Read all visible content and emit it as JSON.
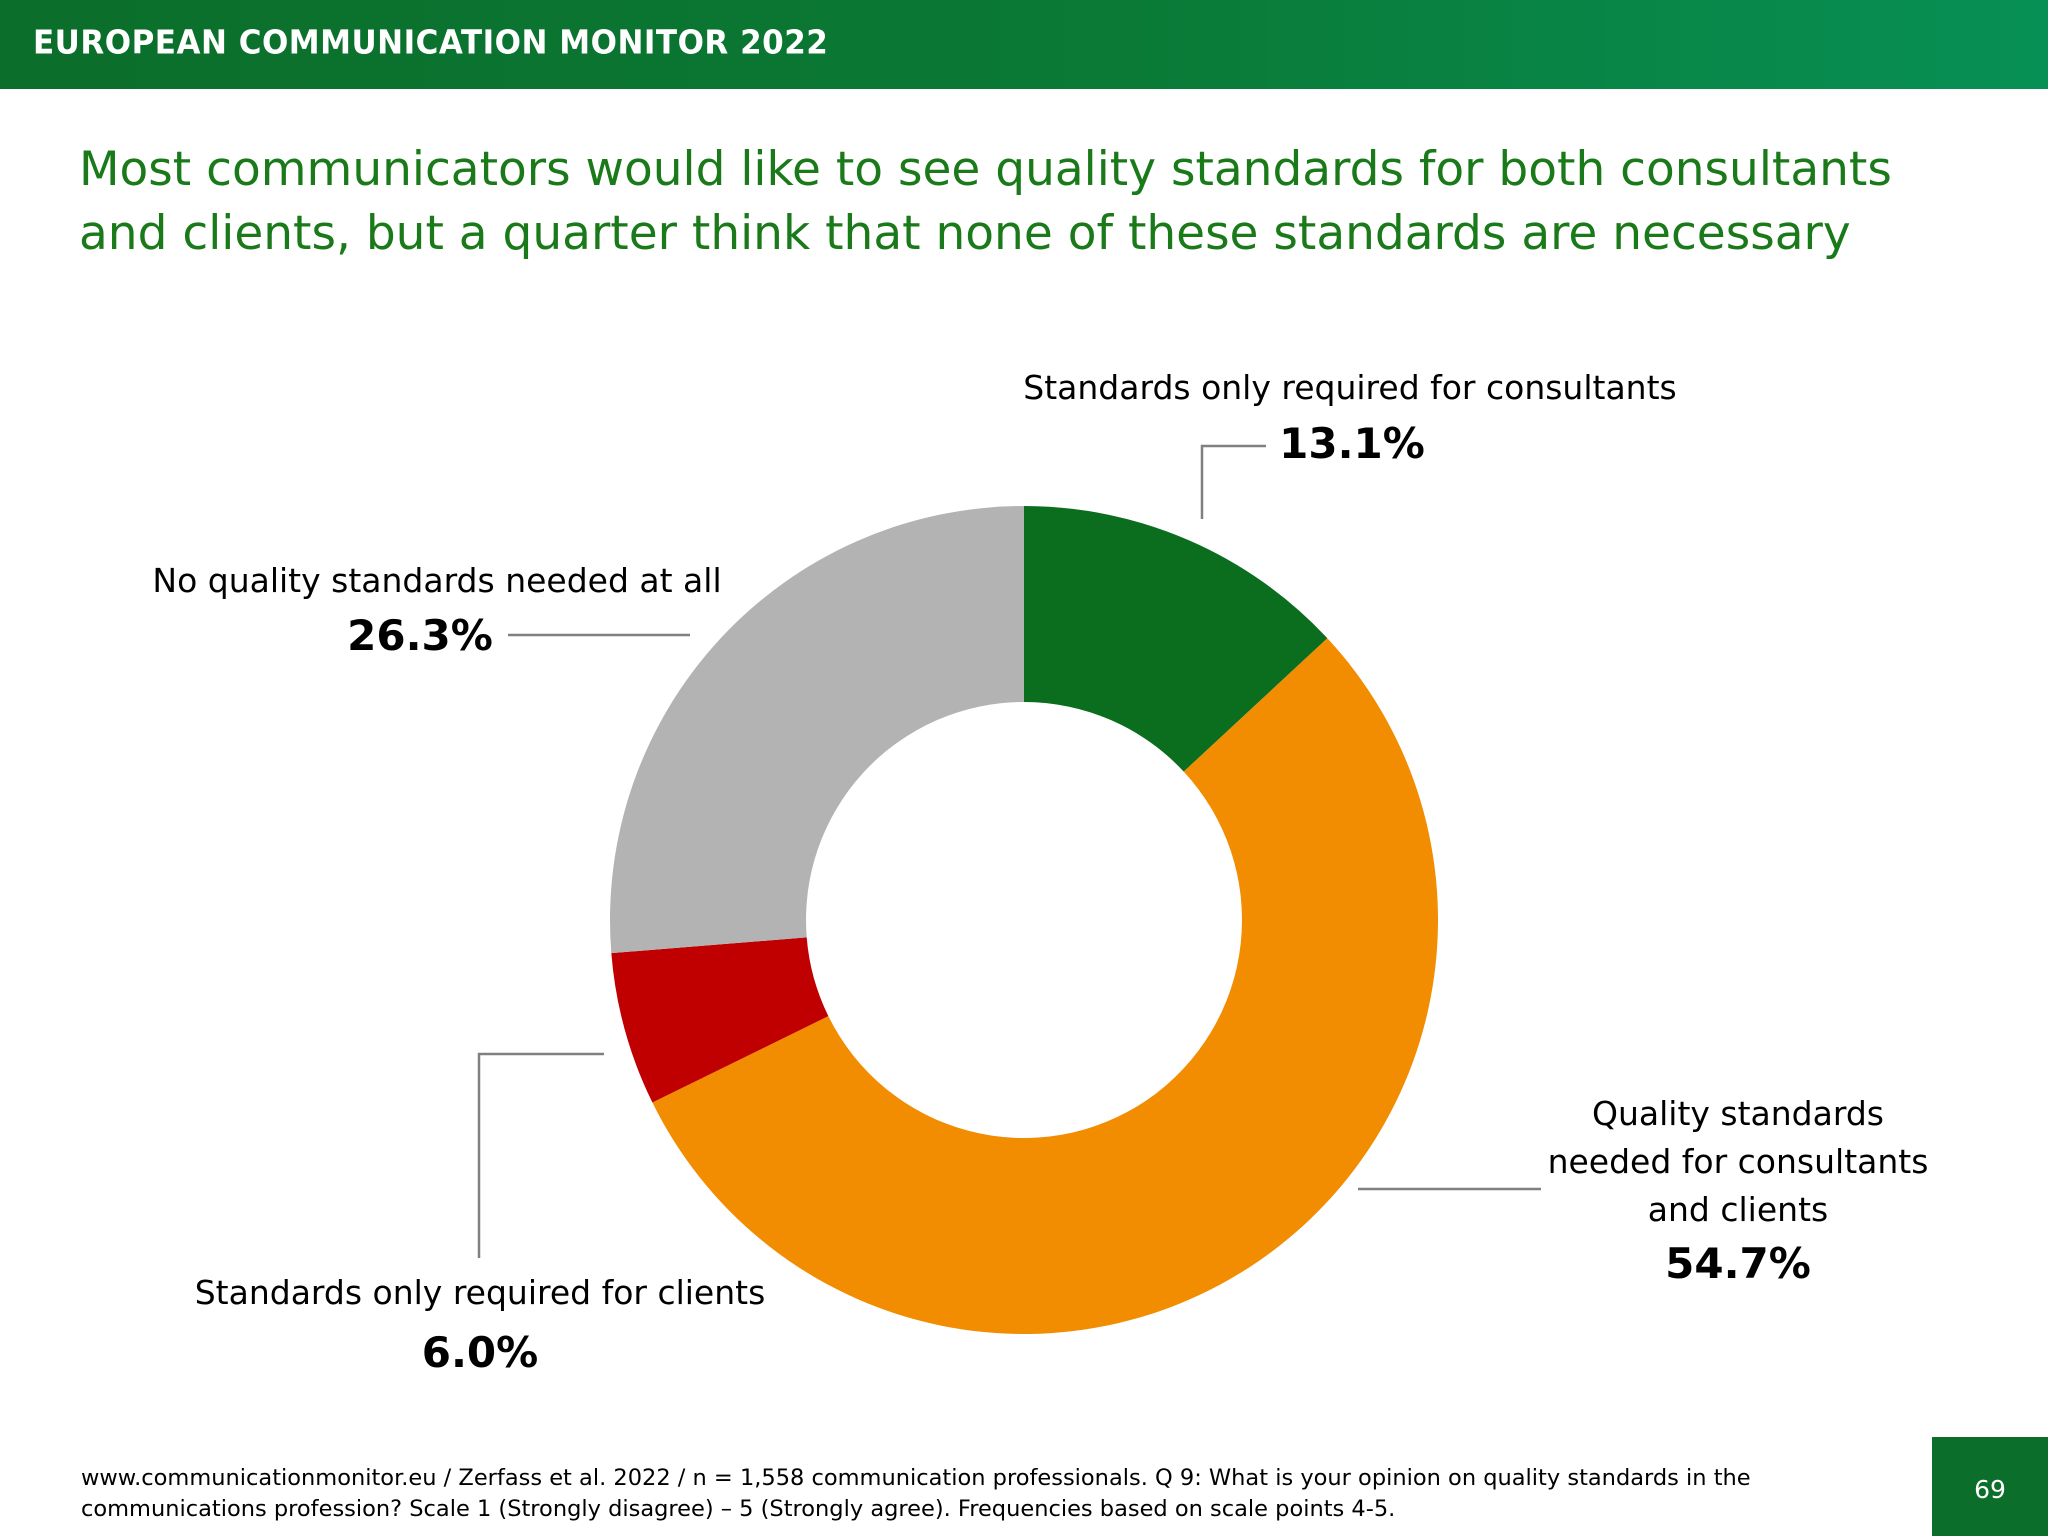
{
  "header": {
    "title": "EUROPEAN COMMUNICATION MONITOR 2022"
  },
  "slide": {
    "title_line1": "Most communicators would like to see quality standards for both consultants",
    "title_line2": "and clients, but a quarter think that none of these standards are necessary"
  },
  "chart_data": {
    "type": "pie",
    "donut": true,
    "unit": "%",
    "slices": [
      {
        "label": "Standards only required for consultants",
        "value": 13.1,
        "value_text": "13.1%",
        "color": "#0b6e1e"
      },
      {
        "label": "Quality standards needed for consultants and clients",
        "label_lines": [
          "Quality standards",
          "needed for consultants",
          "and clients"
        ],
        "value": 54.7,
        "value_text": "54.7%",
        "color": "#f28c00"
      },
      {
        "label": "Standards only required for clients",
        "value": 6.0,
        "value_text": "6.0%",
        "color": "#c00000"
      },
      {
        "label": "No quality standards needed at all",
        "value": 26.3,
        "value_text": "26.3%",
        "color": "#b3b3b3"
      }
    ]
  },
  "footer": {
    "line1": "www.communicationmonitor.eu / Zerfass et al. 2022 / n = 1,558 communication professionals. Q 9: What is your opinion on quality standards in the",
    "line2": "communications profession? Scale 1 (Strongly disagree) – 5 (Strongly agree). Frequencies based on scale points 4-5."
  },
  "page_number": "69"
}
